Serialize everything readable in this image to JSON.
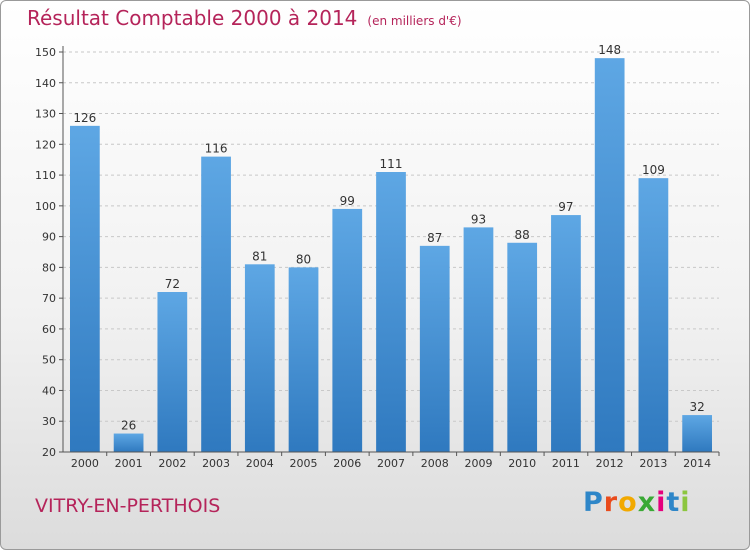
{
  "title": "Résultat Comptable 2000 à 2014",
  "unit": "(en milliers d'€)",
  "commune": "VITRY-EN-PERTHOIS",
  "logo": {
    "letters": [
      "P",
      "r",
      "o",
      "x",
      "i",
      "t",
      "i"
    ],
    "colors": [
      "#2e86c8",
      "#e94b1c",
      "#f2a900",
      "#3aa935",
      "#e5007d",
      "#2e86c8",
      "#8cc63f"
    ]
  },
  "colors": {
    "bar": "#4d97d8",
    "title": "#b5245a",
    "axis": "#333333"
  },
  "chart_data": {
    "type": "bar",
    "categories": [
      "2000",
      "2001",
      "2002",
      "2003",
      "2004",
      "2005",
      "2006",
      "2007",
      "2008",
      "2009",
      "2010",
      "2011",
      "2012",
      "2013",
      "2014"
    ],
    "values": [
      126,
      26,
      72,
      116,
      81,
      80,
      99,
      111,
      87,
      93,
      88,
      97,
      148,
      109,
      32
    ],
    "yticks": [
      20,
      30,
      40,
      50,
      60,
      70,
      80,
      90,
      100,
      110,
      120,
      130,
      140,
      150
    ],
    "ylim": [
      20,
      150
    ],
    "grid": true,
    "legend": "none"
  }
}
